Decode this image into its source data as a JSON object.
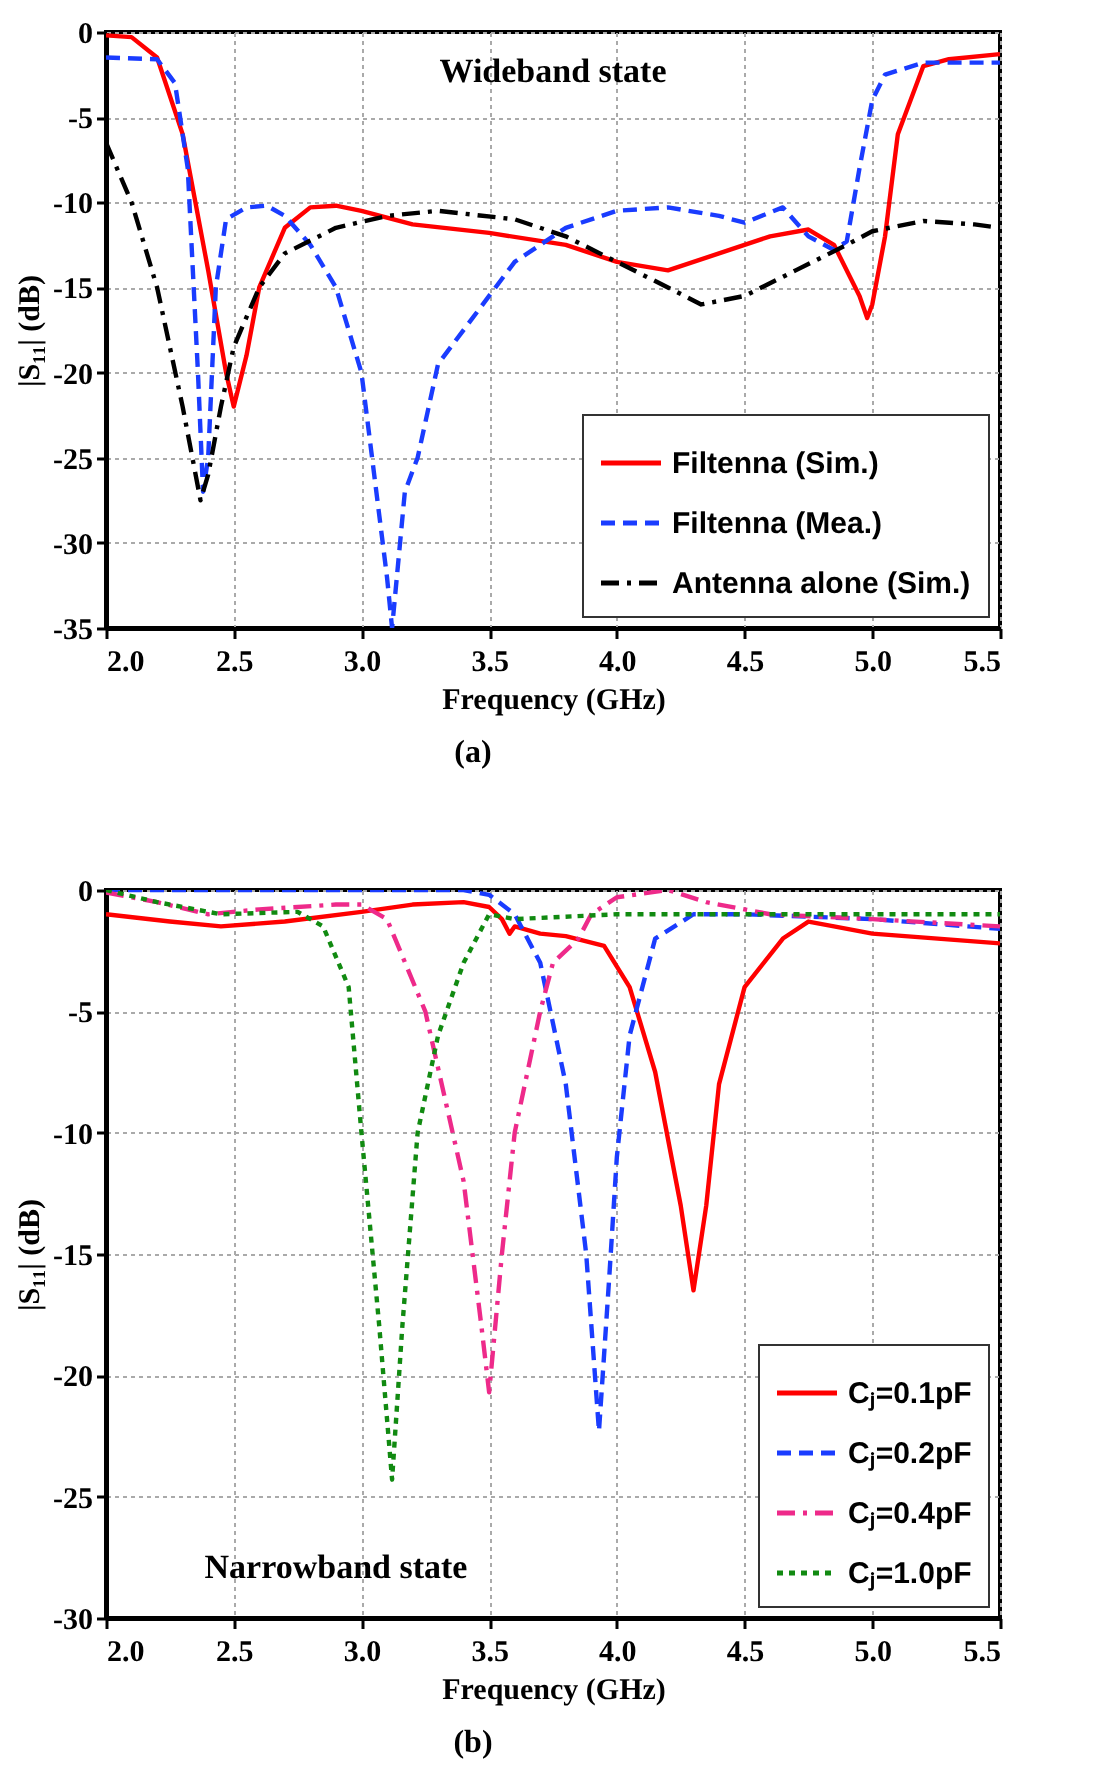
{
  "chart_data": [
    {
      "type": "line",
      "xlabel": "Frequency (GHz)",
      "ylabel": "|S₁₁| (dB)",
      "annotations": [
        "Wideband state",
        "(a)"
      ],
      "xlim": [
        2.0,
        5.5
      ],
      "xticks": [
        {
          "value": 2,
          "label": "2.0"
        },
        2.5,
        {
          "value": 3,
          "label": "3.0"
        },
        3.5,
        {
          "value": 4,
          "label": "4.0"
        },
        4.5,
        {
          "value": 5,
          "label": "5.0"
        },
        5.5
      ],
      "ylim": [
        -35,
        0
      ],
      "yticks": [
        -35,
        -30,
        -25,
        -20,
        -15,
        -10,
        -5,
        0
      ],
      "grid": true,
      "legend": "bottom right",
      "marker": "none",
      "series": [
        {
          "name": "Filtenna (Sim.)",
          "color": "#ff0000",
          "line_style": "solid",
          "x": [
            2.0,
            2.1,
            2.2,
            2.3,
            2.4,
            2.47,
            2.5,
            2.55,
            2.6,
            2.7,
            2.8,
            2.9,
            3.0,
            3.2,
            3.5,
            3.8,
            4.0,
            4.2,
            4.4,
            4.6,
            4.75,
            4.85,
            4.95,
            4.98,
            5.0,
            5.05,
            5.1,
            5.2,
            5.3,
            5.5
          ],
          "values": [
            -0.2,
            -0.3,
            -1.5,
            -6,
            -14,
            -20,
            -22,
            -19,
            -15,
            -11.5,
            -10.3,
            -10.2,
            -10.5,
            -11.3,
            -11.8,
            -12.5,
            -13.5,
            -14,
            -13,
            -12,
            -11.6,
            -12.5,
            -15.5,
            -16.8,
            -16,
            -12,
            -6,
            -2,
            -1.6,
            -1.3
          ]
        },
        {
          "name": "Filtenna (Mea.)",
          "color": "#1a3cff",
          "line_style": "dashed",
          "x": [
            2.0,
            2.2,
            2.27,
            2.32,
            2.36,
            2.38,
            2.4,
            2.43,
            2.47,
            2.55,
            2.63,
            2.7,
            2.8,
            2.9,
            3.0,
            3.05,
            3.1,
            3.12,
            3.17,
            3.22,
            3.3,
            3.35,
            3.5,
            3.6,
            3.8,
            4.0,
            4.2,
            4.4,
            4.5,
            4.65,
            4.75,
            4.85,
            4.9,
            4.95,
            5.0,
            5.05,
            5.2,
            5.5
          ],
          "values": [
            -1.5,
            -1.6,
            -3,
            -8,
            -20,
            -27,
            -25,
            -15,
            -11,
            -10.3,
            -10.2,
            -10.8,
            -12.5,
            -15,
            -20,
            -26,
            -32,
            -35,
            -27,
            -25,
            -19.5,
            -18.5,
            -15.5,
            -13.5,
            -11.5,
            -10.5,
            -10.3,
            -10.8,
            -11.2,
            -10.3,
            -12,
            -12.8,
            -12.3,
            -8,
            -4,
            -2.5,
            -1.8,
            -1.8
          ]
        },
        {
          "name": "Antenna alone (Sim.)",
          "color": "#000000",
          "line_style": "dashdot",
          "x": [
            2.0,
            2.1,
            2.2,
            2.3,
            2.37,
            2.4,
            2.45,
            2.5,
            2.6,
            2.7,
            2.9,
            3.1,
            3.3,
            3.6,
            3.8,
            4.0,
            4.2,
            4.33,
            4.5,
            4.7,
            4.9,
            5.0,
            5.2,
            5.4,
            5.5
          ],
          "values": [
            -6.5,
            -10,
            -15,
            -22,
            -27.5,
            -26,
            -22,
            -18.5,
            -15,
            -13,
            -11.5,
            -10.8,
            -10.5,
            -11,
            -12,
            -13.5,
            -15,
            -16,
            -15.5,
            -14,
            -12.5,
            -11.7,
            -11.1,
            -11.3,
            -11.5
          ]
        }
      ]
    },
    {
      "type": "line",
      "xlabel": "Frequency (GHz)",
      "ylabel": "|S₁₁| (dB)",
      "annotations": [
        "Narrowband state",
        "(b)"
      ],
      "xlim": [
        2.0,
        5.5
      ],
      "xticks": [
        {
          "value": 2,
          "label": "2.0"
        },
        2.5,
        {
          "value": 3,
          "label": "3.0"
        },
        3.5,
        {
          "value": 4,
          "label": "4.0"
        },
        4.5,
        {
          "value": 5,
          "label": "5.0"
        },
        5.5
      ],
      "ylim": [
        -30,
        0
      ],
      "yticks": [
        -30,
        -25,
        -20,
        -15,
        -10,
        -5,
        0
      ],
      "grid": true,
      "legend": "bottom right",
      "marker": "none",
      "series": [
        {
          "name": "Cⱼ=0.1pF",
          "color": "#ff0000",
          "line_style": "solid",
          "x": [
            2.0,
            2.25,
            2.45,
            2.7,
            3.0,
            3.2,
            3.4,
            3.5,
            3.55,
            3.58,
            3.6,
            3.7,
            3.8,
            3.95,
            4.05,
            4.15,
            4.25,
            4.3,
            4.35,
            4.4,
            4.5,
            4.65,
            4.75,
            4.85,
            5.0,
            5.5
          ],
          "values": [
            -1,
            -1.3,
            -1.5,
            -1.3,
            -0.9,
            -0.6,
            -0.5,
            -0.7,
            -1.2,
            -1.8,
            -1.5,
            -1.8,
            -1.9,
            -2.3,
            -4,
            -7.5,
            -13,
            -16.5,
            -13,
            -8,
            -4,
            -2,
            -1.3,
            -1.5,
            -1.8,
            -2.2
          ]
        },
        {
          "name": "Cⱼ=0.2pF",
          "color": "#1a3cff",
          "line_style": "dashed",
          "x": [
            2.0,
            3.4,
            3.5,
            3.6,
            3.7,
            3.8,
            3.88,
            3.93,
            3.97,
            4.0,
            4.05,
            4.15,
            4.3,
            4.5,
            5.0,
            5.5
          ],
          "values": [
            0,
            0,
            -0.2,
            -1,
            -3,
            -8,
            -15,
            -22.3,
            -16,
            -11,
            -6,
            -2,
            -1,
            -1,
            -1.2,
            -1.6
          ]
        },
        {
          "name": "Cⱼ=0.4pF",
          "color": "#ee2a8a",
          "line_style": "dashdot",
          "x": [
            2.0,
            2.2,
            2.4,
            2.6,
            2.9,
            3.0,
            3.1,
            3.25,
            3.4,
            3.47,
            3.5,
            3.55,
            3.6,
            3.7,
            3.75,
            3.85,
            3.9,
            4.0,
            4.2,
            4.35,
            4.6,
            5.0,
            5.5
          ],
          "values": [
            -0.1,
            -0.5,
            -1,
            -0.8,
            -0.6,
            -0.6,
            -1.2,
            -5,
            -12,
            -18,
            -20.7,
            -15,
            -10,
            -5,
            -3,
            -2,
            -1,
            -0.3,
            0,
            -0.5,
            -1,
            -1.2,
            -1.5
          ]
        },
        {
          "name": "Cⱼ=1.0pF",
          "color": "#118a11",
          "line_style": "dotted",
          "x": [
            2.0,
            2.2,
            2.45,
            2.75,
            2.85,
            2.95,
            3.0,
            3.07,
            3.12,
            3.16,
            3.22,
            3.3,
            3.4,
            3.5,
            3.6,
            4.0,
            5.5
          ],
          "values": [
            0,
            -0.5,
            -1,
            -0.9,
            -1.5,
            -4,
            -10,
            -18,
            -24.3,
            -18,
            -10,
            -6,
            -3,
            -1,
            -1.2,
            -1,
            -1
          ]
        }
      ]
    }
  ]
}
